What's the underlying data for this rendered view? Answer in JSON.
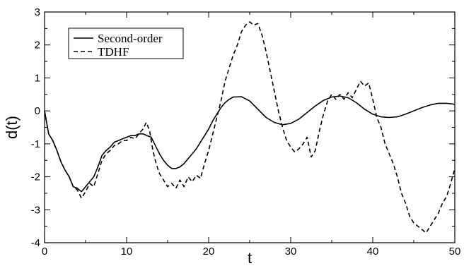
{
  "chart_data": {
    "type": "line",
    "xlabel": "t",
    "ylabel": "d(t)",
    "xlim": [
      0,
      50
    ],
    "ylim": [
      -4,
      3
    ],
    "x_ticks": [
      0,
      10,
      20,
      30,
      40,
      50
    ],
    "y_ticks": [
      -4,
      -3,
      -2,
      -1,
      0,
      1,
      2,
      3
    ],
    "grid": false,
    "legend_placement": "top-left",
    "series": [
      {
        "name": "Second-order",
        "style": "solid",
        "color": "#000000",
        "points": [
          [
            0,
            0.0
          ],
          [
            0.5,
            -0.7
          ],
          [
            1,
            -0.9
          ],
          [
            1.5,
            -1.2
          ],
          [
            2,
            -1.55
          ],
          [
            2.5,
            -1.8
          ],
          [
            3,
            -2.0
          ],
          [
            3.5,
            -2.3
          ],
          [
            4,
            -2.35
          ],
          [
            4.5,
            -2.45
          ],
          [
            5,
            -2.3
          ],
          [
            5.5,
            -2.15
          ],
          [
            6,
            -2.0
          ],
          [
            6.5,
            -1.7
          ],
          [
            7,
            -1.35
          ],
          [
            7.5,
            -1.2
          ],
          [
            8,
            -1.1
          ],
          [
            8.5,
            -0.95
          ],
          [
            9,
            -0.9
          ],
          [
            9.5,
            -0.85
          ],
          [
            10,
            -0.8
          ],
          [
            10.5,
            -0.75
          ],
          [
            11,
            -0.75
          ],
          [
            11.5,
            -0.7
          ],
          [
            12,
            -0.7
          ],
          [
            12.5,
            -0.75
          ],
          [
            13,
            -0.8
          ],
          [
            13.5,
            -1.05
          ],
          [
            14,
            -1.3
          ],
          [
            14.5,
            -1.5
          ],
          [
            15,
            -1.65
          ],
          [
            15.5,
            -1.75
          ],
          [
            16,
            -1.75
          ],
          [
            16.5,
            -1.7
          ],
          [
            17,
            -1.6
          ],
          [
            17.5,
            -1.45
          ],
          [
            18,
            -1.3
          ],
          [
            18.5,
            -1.15
          ],
          [
            19,
            -0.95
          ],
          [
            19.5,
            -0.75
          ],
          [
            20,
            -0.55
          ],
          [
            20.5,
            -0.3
          ],
          [
            21,
            -0.1
          ],
          [
            21.5,
            0.1
          ],
          [
            22,
            0.25
          ],
          [
            22.5,
            0.35
          ],
          [
            23,
            0.42
          ],
          [
            24,
            0.43
          ],
          [
            25,
            0.3
          ],
          [
            26,
            0.05
          ],
          [
            27,
            -0.2
          ],
          [
            28,
            -0.35
          ],
          [
            29,
            -0.42
          ],
          [
            30,
            -0.38
          ],
          [
            31,
            -0.25
          ],
          [
            32,
            -0.05
          ],
          [
            33,
            0.15
          ],
          [
            34,
            0.32
          ],
          [
            35,
            0.42
          ],
          [
            36,
            0.45
          ],
          [
            37,
            0.4
          ],
          [
            38,
            0.25
          ],
          [
            39,
            0.05
          ],
          [
            40,
            -0.1
          ],
          [
            41,
            -0.18
          ],
          [
            42,
            -0.2
          ],
          [
            43,
            -0.18
          ],
          [
            44,
            -0.1
          ],
          [
            45,
            0.0
          ],
          [
            46,
            0.1
          ],
          [
            47,
            0.18
          ],
          [
            48,
            0.23
          ],
          [
            49,
            0.23
          ],
          [
            50,
            0.2
          ]
        ]
      },
      {
        "name": "TDHF",
        "style": "dashed",
        "color": "#000000",
        "points": [
          [
            0,
            0.0
          ],
          [
            0.5,
            -0.7
          ],
          [
            1,
            -0.9
          ],
          [
            1.5,
            -1.2
          ],
          [
            2,
            -1.55
          ],
          [
            2.5,
            -1.8
          ],
          [
            3,
            -2.0
          ],
          [
            3.5,
            -2.3
          ],
          [
            4,
            -2.4
          ],
          [
            4.5,
            -2.65
          ],
          [
            5,
            -2.45
          ],
          [
            5.5,
            -2.2
          ],
          [
            6,
            -2.3
          ],
          [
            6.5,
            -1.9
          ],
          [
            7,
            -1.5
          ],
          [
            7.5,
            -1.3
          ],
          [
            8,
            -1.2
          ],
          [
            8.5,
            -1.05
          ],
          [
            9,
            -1.0
          ],
          [
            9.5,
            -0.9
          ],
          [
            10,
            -0.9
          ],
          [
            10.5,
            -0.8
          ],
          [
            11,
            -0.85
          ],
          [
            11.5,
            -0.7
          ],
          [
            12,
            -0.55
          ],
          [
            12.4,
            -0.35
          ],
          [
            12.8,
            -0.6
          ],
          [
            13.2,
            -1.2
          ],
          [
            13.6,
            -1.6
          ],
          [
            14,
            -1.9
          ],
          [
            14.5,
            -2.1
          ],
          [
            15,
            -2.3
          ],
          [
            15.5,
            -2.2
          ],
          [
            16,
            -2.35
          ],
          [
            16.5,
            -2.1
          ],
          [
            17,
            -2.3
          ],
          [
            17.5,
            -2.0
          ],
          [
            18,
            -2.15
          ],
          [
            18.5,
            -1.95
          ],
          [
            19,
            -2.05
          ],
          [
            19.5,
            -1.6
          ],
          [
            20,
            -1.2
          ],
          [
            20.5,
            -0.7
          ],
          [
            21,
            -0.2
          ],
          [
            21.5,
            0.3
          ],
          [
            22,
            0.9
          ],
          [
            22.5,
            1.3
          ],
          [
            23,
            1.7
          ],
          [
            23.5,
            2.0
          ],
          [
            24,
            2.4
          ],
          [
            24.5,
            2.6
          ],
          [
            25,
            2.7
          ],
          [
            25.5,
            2.6
          ],
          [
            26,
            2.65
          ],
          [
            26.5,
            2.3
          ],
          [
            27,
            1.8
          ],
          [
            27.5,
            1.2
          ],
          [
            28,
            0.6
          ],
          [
            28.5,
            0.0
          ],
          [
            29,
            -0.5
          ],
          [
            29.5,
            -0.9
          ],
          [
            30,
            -1.1
          ],
          [
            30.5,
            -1.25
          ],
          [
            31,
            -1.15
          ],
          [
            31.5,
            -1.0
          ],
          [
            32,
            -0.8
          ],
          [
            32.5,
            -1.4
          ],
          [
            33,
            -1.2
          ],
          [
            33.5,
            -0.6
          ],
          [
            34,
            -0.1
          ],
          [
            34.5,
            0.3
          ],
          [
            35,
            0.5
          ],
          [
            35.5,
            0.35
          ],
          [
            36,
            0.5
          ],
          [
            36.5,
            0.35
          ],
          [
            37,
            0.55
          ],
          [
            37.5,
            0.4
          ],
          [
            38,
            0.65
          ],
          [
            38.5,
            0.9
          ],
          [
            39,
            0.75
          ],
          [
            39.5,
            0.85
          ],
          [
            40,
            0.35
          ],
          [
            40.5,
            -0.2
          ],
          [
            41,
            -0.5
          ],
          [
            41.5,
            -1.0
          ],
          [
            42,
            -1.3
          ],
          [
            42.5,
            -1.6
          ],
          [
            43,
            -2.0
          ],
          [
            43.5,
            -2.5
          ],
          [
            44,
            -2.8
          ],
          [
            44.5,
            -3.2
          ],
          [
            45,
            -3.4
          ],
          [
            45.5,
            -3.5
          ],
          [
            46,
            -3.6
          ],
          [
            46.5,
            -3.7
          ],
          [
            47,
            -3.5
          ],
          [
            47.5,
            -3.3
          ],
          [
            48,
            -3.1
          ],
          [
            48.5,
            -2.8
          ],
          [
            49,
            -2.6
          ],
          [
            49.5,
            -2.2
          ],
          [
            50,
            -1.75
          ]
        ]
      }
    ]
  }
}
